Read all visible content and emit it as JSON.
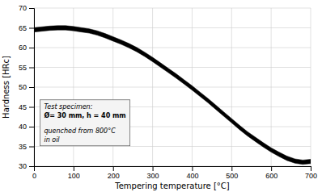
{
  "chart_data": {
    "type": "band",
    "xlabel": "Tempering temperature [°C]",
    "ylabel": "Hardness [HRc]",
    "xlim": [
      0,
      700
    ],
    "ylim": [
      30,
      70
    ],
    "xticks": [
      0,
      100,
      200,
      300,
      400,
      500,
      600,
      700
    ],
    "yticks": [
      30,
      35,
      40,
      45,
      50,
      55,
      60,
      65,
      70
    ],
    "x": [
      0,
      20,
      40,
      60,
      80,
      100,
      120,
      140,
      160,
      180,
      200,
      220,
      240,
      260,
      280,
      300,
      320,
      340,
      360,
      380,
      400,
      420,
      440,
      460,
      480,
      500,
      520,
      540,
      560,
      580,
      600,
      620,
      640,
      660,
      680,
      700
    ],
    "lower": [
      63.95,
      64.15,
      64.35,
      64.45,
      64.45,
      64.25,
      63.95,
      63.65,
      63.15,
      62.45,
      61.65,
      60.85,
      59.95,
      58.95,
      57.75,
      56.45,
      55.05,
      53.65,
      52.25,
      50.75,
      49.25,
      47.65,
      46.05,
      44.35,
      42.65,
      40.95,
      39.25,
      37.65,
      36.25,
      34.85,
      33.55,
      32.45,
      31.45,
      30.75,
      30.45,
      30.65
    ],
    "upper": [
      65.05,
      65.25,
      65.45,
      65.55,
      65.55,
      65.35,
      65.05,
      64.75,
      64.25,
      63.55,
      62.75,
      61.95,
      61.05,
      60.05,
      58.85,
      57.55,
      56.15,
      54.75,
      53.35,
      51.85,
      50.35,
      48.75,
      47.15,
      45.45,
      43.75,
      42.05,
      40.35,
      38.75,
      37.35,
      35.95,
      34.65,
      33.55,
      32.55,
      31.85,
      31.55,
      31.75
    ],
    "color": "#000000",
    "grid": true,
    "annotations": [
      "Test specimen:",
      "Ø= 30 mm, h = 40 mm",
      "quenched from 800°C",
      "in oil"
    ]
  }
}
